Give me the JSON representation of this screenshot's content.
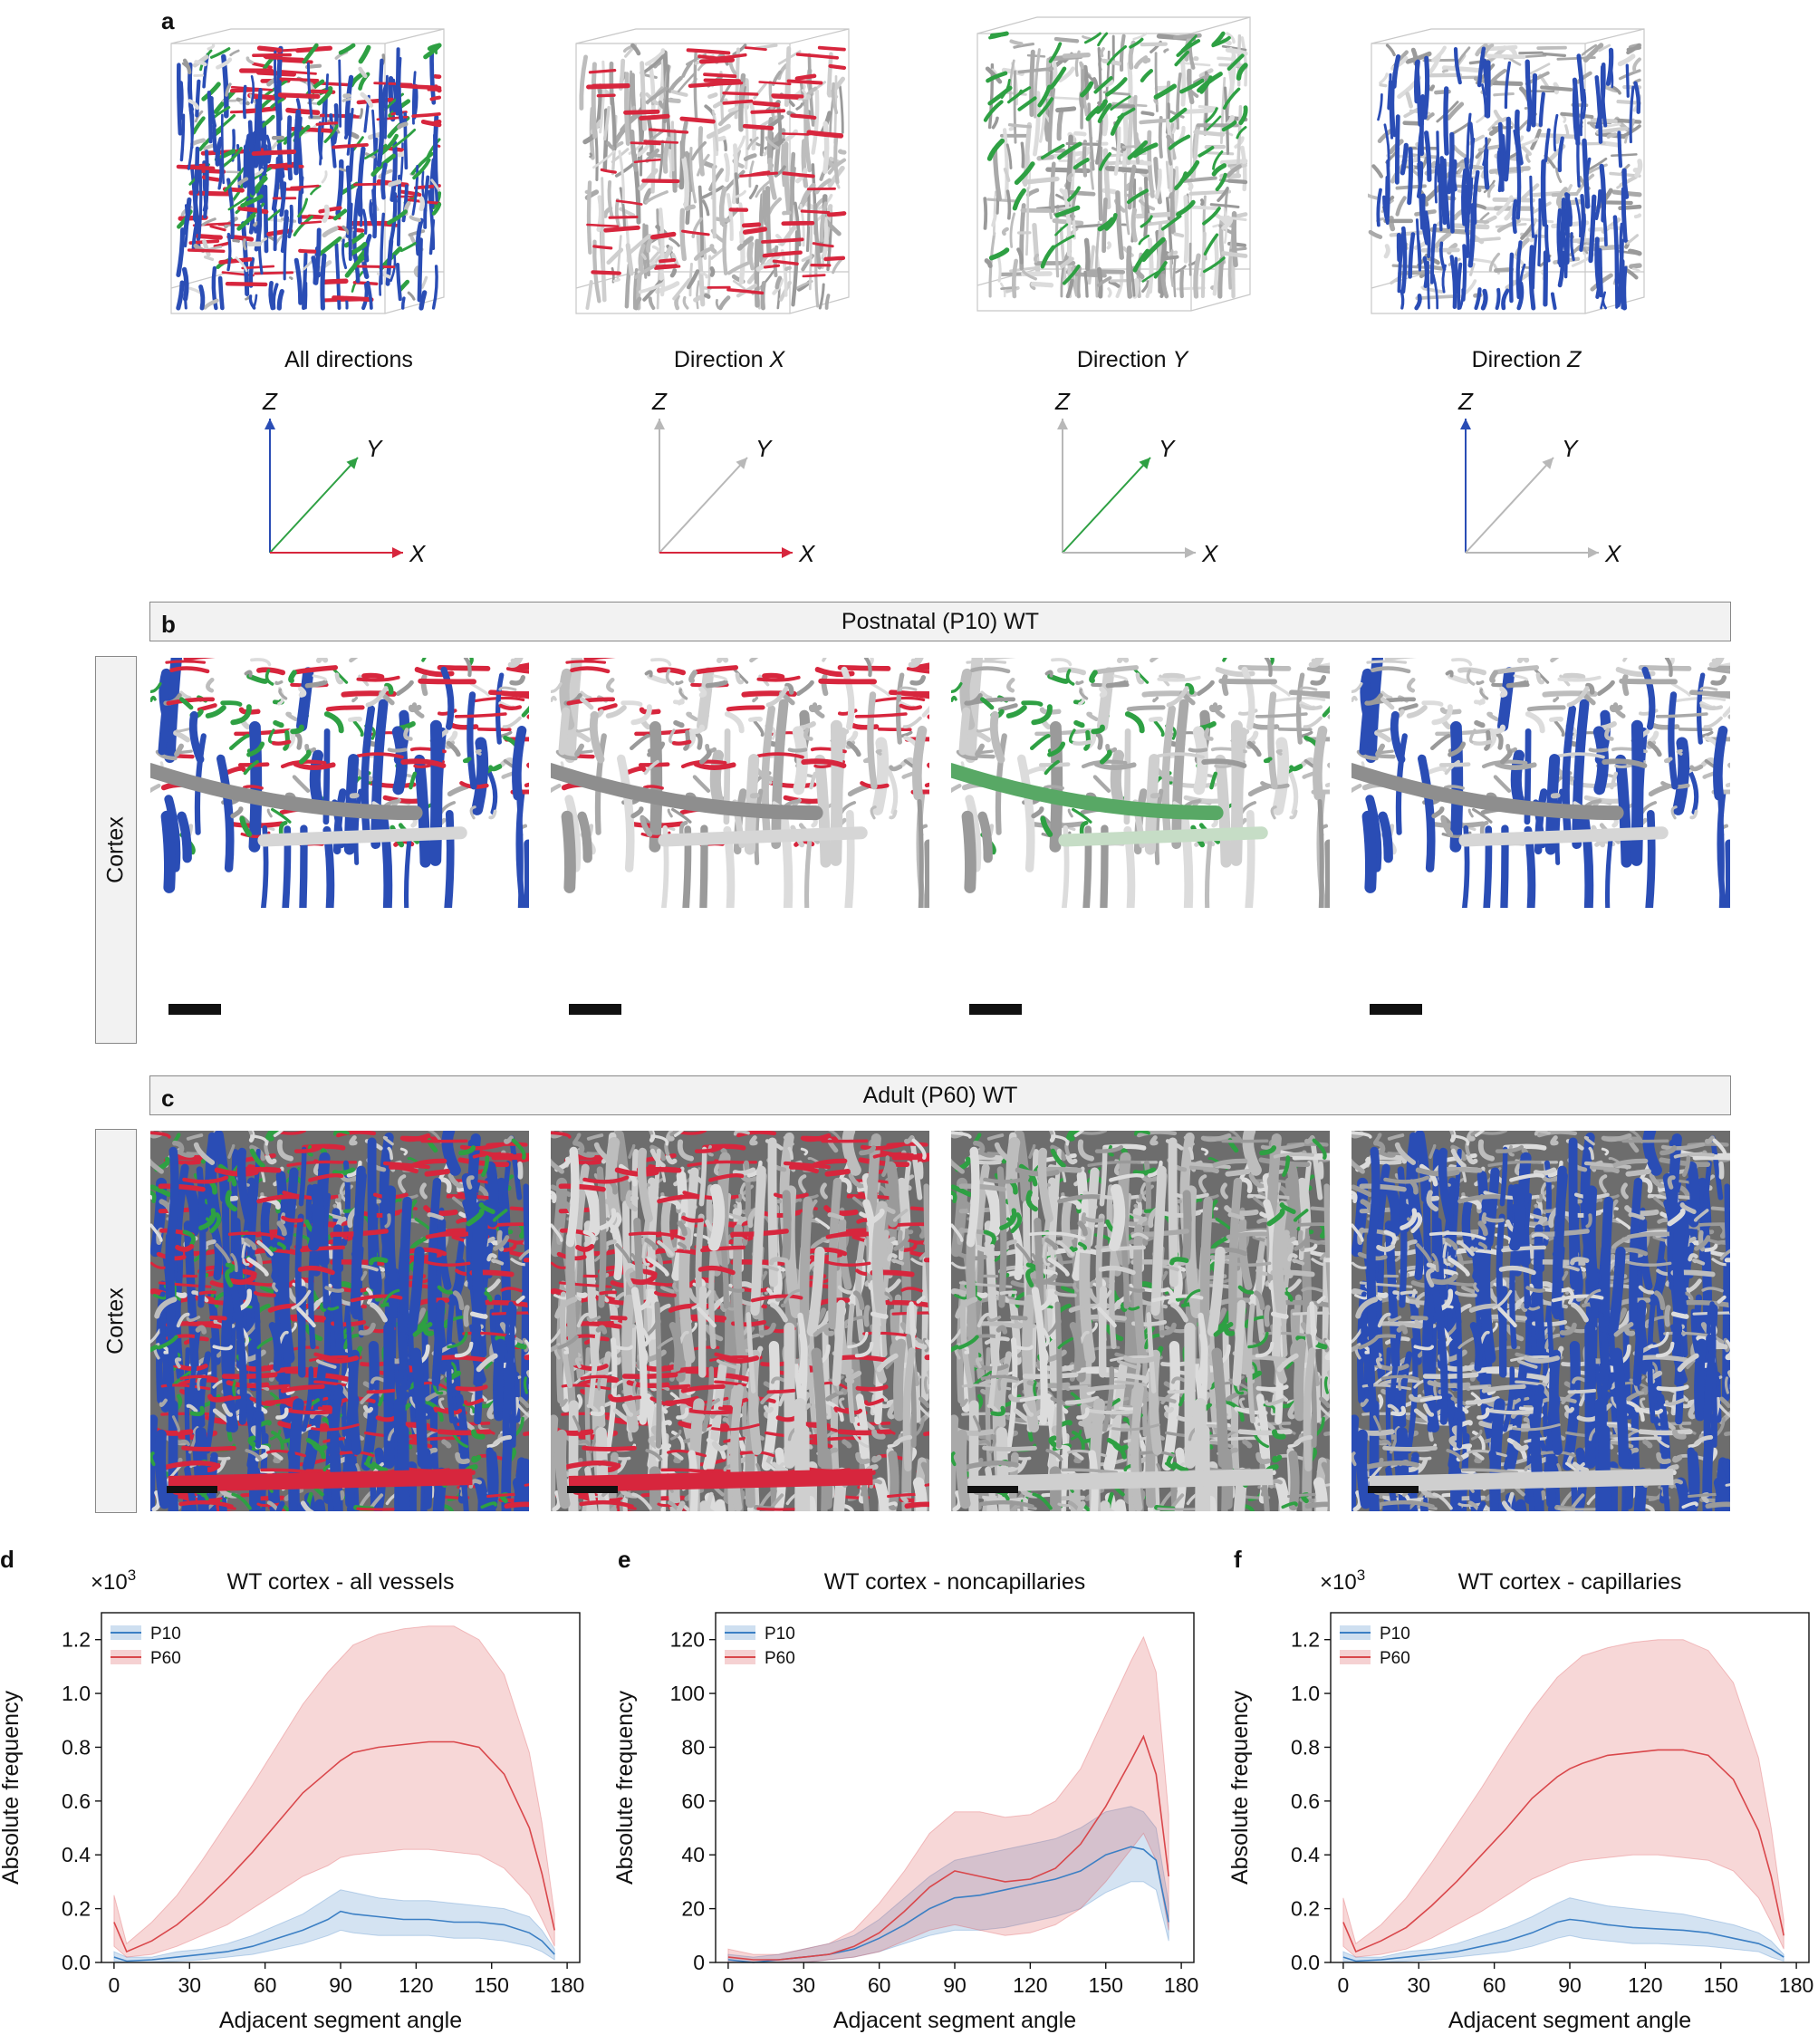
{
  "panels": {
    "a": "a",
    "b": "b",
    "c": "c",
    "d": "d",
    "e": "e",
    "f": "f"
  },
  "colors": {
    "x_direction": "#d7263d",
    "y_direction": "#2ea043",
    "z_direction": "#2a4db5",
    "neutral": "#b8b8b8"
  },
  "cubes": [
    {
      "caption_main": "All directions",
      "caption_axis": "",
      "highlight": "all"
    },
    {
      "caption_main": "Direction ",
      "caption_axis": "X",
      "highlight": "x"
    },
    {
      "caption_main": "Direction ",
      "caption_axis": "Y",
      "highlight": "y"
    },
    {
      "caption_main": "Direction ",
      "caption_axis": "Z",
      "highlight": "z"
    }
  ],
  "axis_labels": {
    "x": "X",
    "y": "Y",
    "z": "Z"
  },
  "postnatal": {
    "banner": "Postnatal (P10) WT",
    "region": "Cortex"
  },
  "adult": {
    "banner": "Adult (P60) WT",
    "region": "Cortex"
  },
  "chart_data": [
    {
      "type": "line",
      "title": "WT cortex - all vessels",
      "xlabel": "Adjacent segment angle",
      "ylabel": "Absolute frequency",
      "exponent_label": "×10",
      "exponent": "3",
      "xlim": [
        -5,
        185
      ],
      "ylim": [
        0,
        1.3
      ],
      "xticks": [
        0,
        30,
        60,
        90,
        120,
        150,
        180
      ],
      "yticks": [
        0.0,
        0.2,
        0.4,
        0.6,
        0.8,
        1.0,
        1.2
      ],
      "ytick_labels": [
        "0.0",
        "0.2",
        "0.4",
        "0.6",
        "0.8",
        "1.0",
        "1.2"
      ],
      "legend_position": "top-left",
      "x": [
        0,
        5,
        15,
        25,
        35,
        45,
        55,
        65,
        75,
        85,
        90,
        95,
        105,
        115,
        125,
        135,
        145,
        155,
        165,
        170,
        175
      ],
      "series": [
        {
          "name": "P10",
          "color": "#3b7fc4",
          "values": [
            0.02,
            0.005,
            0.01,
            0.02,
            0.03,
            0.04,
            0.06,
            0.09,
            0.12,
            0.16,
            0.19,
            0.18,
            0.17,
            0.16,
            0.16,
            0.15,
            0.15,
            0.14,
            0.11,
            0.08,
            0.03
          ],
          "upper": [
            0.04,
            0.02,
            0.02,
            0.04,
            0.05,
            0.07,
            0.1,
            0.14,
            0.18,
            0.24,
            0.27,
            0.26,
            0.24,
            0.23,
            0.23,
            0.22,
            0.21,
            0.2,
            0.17,
            0.12,
            0.05
          ],
          "lower": [
            0.005,
            0.0,
            0.0,
            0.005,
            0.01,
            0.02,
            0.03,
            0.05,
            0.07,
            0.1,
            0.12,
            0.11,
            0.1,
            0.1,
            0.1,
            0.09,
            0.09,
            0.08,
            0.06,
            0.04,
            0.01
          ]
        },
        {
          "name": "P60",
          "color": "#d9474b",
          "values": [
            0.15,
            0.04,
            0.08,
            0.14,
            0.22,
            0.31,
            0.41,
            0.52,
            0.63,
            0.71,
            0.75,
            0.78,
            0.8,
            0.81,
            0.82,
            0.82,
            0.8,
            0.7,
            0.5,
            0.33,
            0.12
          ],
          "upper": [
            0.25,
            0.07,
            0.15,
            0.25,
            0.38,
            0.52,
            0.66,
            0.81,
            0.96,
            1.08,
            1.13,
            1.18,
            1.22,
            1.24,
            1.25,
            1.25,
            1.2,
            1.07,
            0.78,
            0.52,
            0.18
          ],
          "lower": [
            0.06,
            0.02,
            0.03,
            0.06,
            0.1,
            0.14,
            0.2,
            0.26,
            0.32,
            0.36,
            0.39,
            0.4,
            0.41,
            0.42,
            0.42,
            0.41,
            0.4,
            0.35,
            0.25,
            0.16,
            0.06
          ]
        }
      ]
    },
    {
      "type": "line",
      "title": "WT cortex - noncapillaries",
      "xlabel": "Adjacent segment angle",
      "ylabel": "Absolute frequency",
      "exponent_label": "",
      "exponent": "",
      "xlim": [
        -5,
        185
      ],
      "ylim": [
        0,
        130
      ],
      "xticks": [
        0,
        30,
        60,
        90,
        120,
        150,
        180
      ],
      "yticks": [
        0,
        20,
        40,
        60,
        80,
        100,
        120
      ],
      "ytick_labels": [
        "0",
        "20",
        "40",
        "60",
        "80",
        "100",
        "120"
      ],
      "legend_position": "top-left",
      "x": [
        0,
        10,
        20,
        30,
        40,
        50,
        60,
        70,
        80,
        90,
        100,
        110,
        120,
        130,
        140,
        150,
        160,
        165,
        170,
        175
      ],
      "series": [
        {
          "name": "P10",
          "color": "#3b7fc4",
          "values": [
            1,
            0,
            1,
            2,
            3,
            5,
            9,
            14,
            20,
            24,
            25,
            27,
            29,
            31,
            34,
            40,
            43,
            42,
            38,
            15
          ],
          "upper": [
            3,
            2,
            3,
            5,
            7,
            10,
            16,
            24,
            32,
            38,
            40,
            42,
            44,
            46,
            50,
            56,
            58,
            56,
            50,
            22
          ],
          "lower": [
            0,
            0,
            0,
            0,
            1,
            2,
            4,
            7,
            10,
            12,
            12,
            13,
            15,
            17,
            20,
            26,
            30,
            30,
            27,
            8
          ]
        },
        {
          "name": "P60",
          "color": "#d9474b",
          "values": [
            2,
            1,
            1,
            2,
            3,
            6,
            11,
            19,
            28,
            34,
            32,
            30,
            31,
            35,
            44,
            58,
            75,
            84,
            70,
            32
          ],
          "upper": [
            5,
            3,
            3,
            5,
            7,
            12,
            22,
            34,
            48,
            56,
            56,
            54,
            55,
            60,
            72,
            92,
            112,
            121,
            108,
            55
          ],
          "lower": [
            0,
            0,
            0,
            0,
            1,
            2,
            4,
            8,
            12,
            14,
            12,
            10,
            11,
            14,
            20,
            30,
            42,
            48,
            38,
            12
          ]
        }
      ]
    },
    {
      "type": "line",
      "title": "WT cortex - capillaries",
      "xlabel": "Adjacent segment angle",
      "ylabel": "Absolute frequency",
      "exponent_label": "×10",
      "exponent": "3",
      "xlim": [
        -5,
        185
      ],
      "ylim": [
        0,
        1.3
      ],
      "xticks": [
        0,
        30,
        60,
        90,
        120,
        150,
        180
      ],
      "yticks": [
        0.0,
        0.2,
        0.4,
        0.6,
        0.8,
        1.0,
        1.2
      ],
      "ytick_labels": [
        "0.0",
        "0.2",
        "0.4",
        "0.6",
        "0.8",
        "1.0",
        "1.2"
      ],
      "legend_position": "top-left",
      "x": [
        0,
        5,
        15,
        25,
        35,
        45,
        55,
        65,
        75,
        85,
        90,
        95,
        105,
        115,
        125,
        135,
        145,
        155,
        165,
        170,
        175
      ],
      "series": [
        {
          "name": "P10",
          "color": "#3b7fc4",
          "values": [
            0.02,
            0.005,
            0.01,
            0.02,
            0.03,
            0.04,
            0.06,
            0.08,
            0.11,
            0.15,
            0.16,
            0.155,
            0.14,
            0.13,
            0.125,
            0.12,
            0.11,
            0.09,
            0.07,
            0.05,
            0.02
          ],
          "upper": [
            0.04,
            0.02,
            0.02,
            0.04,
            0.05,
            0.07,
            0.1,
            0.13,
            0.17,
            0.22,
            0.24,
            0.23,
            0.21,
            0.2,
            0.19,
            0.18,
            0.16,
            0.14,
            0.11,
            0.08,
            0.03
          ],
          "lower": [
            0.005,
            0.0,
            0.0,
            0.005,
            0.01,
            0.02,
            0.03,
            0.04,
            0.06,
            0.09,
            0.1,
            0.09,
            0.08,
            0.07,
            0.07,
            0.065,
            0.06,
            0.05,
            0.04,
            0.02,
            0.005
          ]
        },
        {
          "name": "P60",
          "color": "#d9474b",
          "values": [
            0.15,
            0.04,
            0.08,
            0.13,
            0.21,
            0.3,
            0.4,
            0.5,
            0.61,
            0.69,
            0.72,
            0.74,
            0.77,
            0.78,
            0.79,
            0.79,
            0.77,
            0.68,
            0.49,
            0.32,
            0.1
          ],
          "upper": [
            0.24,
            0.07,
            0.14,
            0.24,
            0.37,
            0.51,
            0.65,
            0.8,
            0.94,
            1.06,
            1.1,
            1.14,
            1.17,
            1.19,
            1.2,
            1.2,
            1.16,
            1.04,
            0.76,
            0.5,
            0.16
          ],
          "lower": [
            0.06,
            0.02,
            0.03,
            0.05,
            0.09,
            0.14,
            0.19,
            0.25,
            0.31,
            0.35,
            0.37,
            0.38,
            0.39,
            0.4,
            0.4,
            0.39,
            0.38,
            0.34,
            0.24,
            0.15,
            0.05
          ]
        }
      ]
    }
  ]
}
